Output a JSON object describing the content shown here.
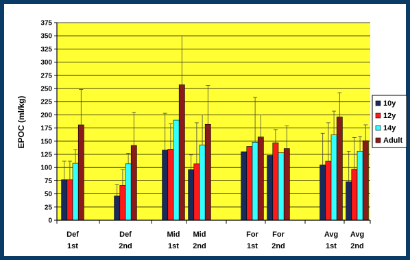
{
  "chart_data": {
    "type": "bar",
    "title": "",
    "xlabel": "",
    "ylabel": "EPOC (ml/kg)",
    "ylim": [
      0,
      375
    ],
    "ytick_step": 25,
    "grid": true,
    "legend_position": "right",
    "plot_background": "#ffff33",
    "categories": [
      [
        "Def",
        "1st"
      ],
      [
        "Def",
        "2nd"
      ],
      [
        "Mid",
        "1st"
      ],
      [
        "Mid",
        "2nd"
      ],
      [
        "For",
        "1st"
      ],
      [
        "For",
        "2nd"
      ],
      [
        "Avg",
        "1st"
      ],
      [
        "Avg",
        "2nd"
      ]
    ],
    "series": [
      {
        "name": "10y",
        "color": "#1a2a5a",
        "values": [
          77,
          46,
          133,
          96,
          130,
          123,
          105,
          73
        ],
        "error": [
          35,
          22,
          70,
          28,
          0,
          0,
          60,
          58
        ]
      },
      {
        "name": "12y",
        "color": "#ff1a1a",
        "values": [
          77,
          66,
          135,
          107,
          140,
          147,
          112,
          97
        ],
        "error": [
          35,
          30,
          48,
          78,
          0,
          25,
          73,
          60
        ]
      },
      {
        "name": "14y",
        "color": "#33ffff",
        "values": [
          108,
          107,
          190,
          143,
          148,
          128,
          162,
          131
        ],
        "error": [
          26,
          20,
          0,
          57,
          85,
          0,
          45,
          28
        ]
      },
      {
        "name": "Adult",
        "color": "#8b1a1a",
        "values": [
          181,
          142,
          257,
          182,
          158,
          136,
          196,
          151
        ],
        "error": [
          67,
          63,
          93,
          74,
          42,
          43,
          46,
          30
        ]
      }
    ]
  }
}
